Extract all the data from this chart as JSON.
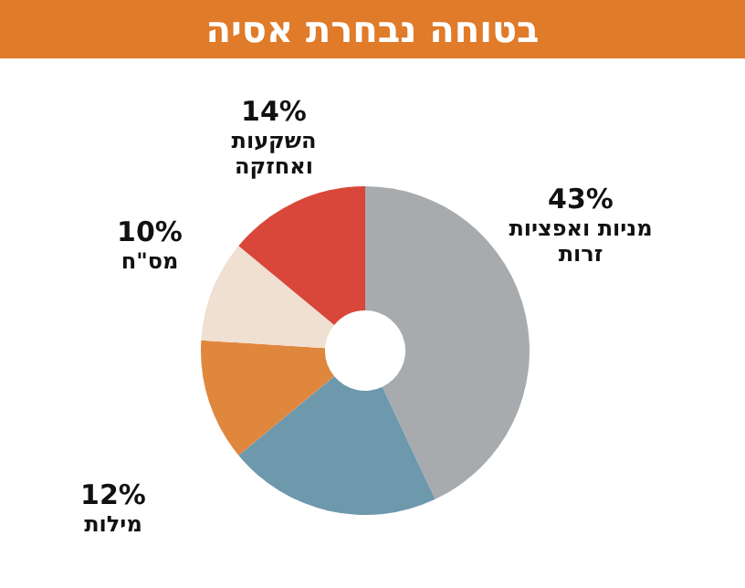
{
  "chart_data": {
    "type": "donut",
    "title": "בטוחה נבחרת אסיה",
    "categories": [
      "מניות ואפציות זרות",
      null,
      "מילות",
      "מס\"ח",
      "השקעות ואחזקה"
    ],
    "values": [
      43,
      21,
      12,
      10,
      14
    ],
    "value_labels": [
      "43%",
      null,
      "12%",
      "10%",
      "14%"
    ],
    "colors": [
      "#a8abae",
      "#6e98ac",
      "#e0873e",
      "#efe0d1",
      "#d8473a"
    ]
  }
}
